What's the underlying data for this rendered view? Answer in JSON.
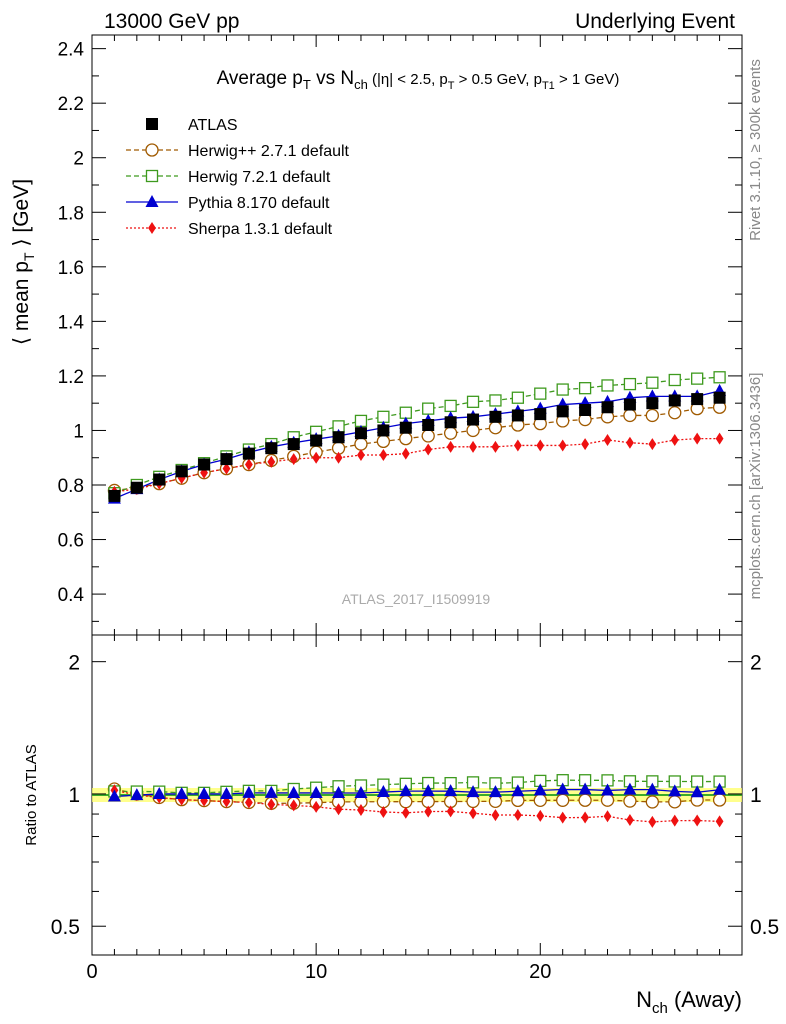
{
  "header": {
    "left": "13000 GeV pp",
    "right": "Underlying Event"
  },
  "side_labels": {
    "rivet": "Rivet 3.1.10, ≥ 300k events",
    "mcplots": "mcplots.cern.ch [arXiv:1306.3436]"
  },
  "watermark": "ATLAS_2017_I1509919",
  "chart_data": {
    "type": "line",
    "title": {
      "main": "Average p",
      "main_sub": "T",
      "vs": " vs N",
      "vs_sub": "ch",
      "cuts_a": " (|η| < 2.5, p",
      "cuts_a_sub": "T",
      "cuts_b": " > 0.5 GeV, p",
      "cuts_b_sub": "T1",
      "cuts_c": " > 1 GeV)"
    },
    "ylabel": {
      "a": "⟨ mean p",
      "sub": "T",
      "b": " ⟩ [GeV]"
    },
    "xlabel": {
      "a": "N",
      "sub": "ch",
      "b": " (Away)"
    },
    "ratio_ylabel": "Ratio to ATLAS",
    "xlim": [
      0,
      29
    ],
    "ylim": [
      0.25,
      2.45
    ],
    "ratio_ylim": [
      0.43,
      2.3
    ],
    "x_ticks": [
      "0",
      "10",
      "20"
    ],
    "y_ticks": [
      "0.4",
      "0.6",
      "0.8",
      "1",
      "1.2",
      "1.4",
      "1.6",
      "1.8",
      "2",
      "2.2",
      "2.4"
    ],
    "ratio_ticks": [
      "0.5",
      "1",
      "2"
    ],
    "x": [
      1,
      2,
      3,
      4,
      5,
      6,
      7,
      8,
      9,
      10,
      11,
      12,
      13,
      14,
      15,
      16,
      17,
      18,
      19,
      20,
      21,
      22,
      23,
      24,
      25,
      26,
      27,
      28
    ],
    "series": [
      {
        "name": "ATLAS",
        "color": "#000000",
        "marker": "square-filled",
        "values": [
          0.76,
          0.79,
          0.82,
          0.85,
          0.875,
          0.895,
          0.915,
          0.935,
          0.95,
          0.963,
          0.975,
          0.99,
          1.0,
          1.01,
          1.02,
          1.03,
          1.04,
          1.05,
          1.055,
          1.06,
          1.07,
          1.075,
          1.085,
          1.095,
          1.1,
          1.11,
          1.115,
          1.12
        ]
      },
      {
        "name": "Herwig++ 2.7.1 default",
        "color": "#a05a00",
        "marker": "circle-open",
        "values": [
          0.78,
          0.79,
          0.805,
          0.825,
          0.845,
          0.86,
          0.875,
          0.89,
          0.905,
          0.92,
          0.935,
          0.95,
          0.96,
          0.97,
          0.98,
          0.99,
          1.0,
          1.01,
          1.02,
          1.025,
          1.035,
          1.04,
          1.05,
          1.055,
          1.055,
          1.065,
          1.08,
          1.085
        ]
      },
      {
        "name": "Herwig 7.2.1 default",
        "color": "#3e9a1e",
        "marker": "square-open",
        "values": [
          0.77,
          0.8,
          0.83,
          0.855,
          0.88,
          0.905,
          0.93,
          0.95,
          0.975,
          0.995,
          1.015,
          1.035,
          1.05,
          1.065,
          1.08,
          1.09,
          1.105,
          1.11,
          1.12,
          1.135,
          1.15,
          1.155,
          1.165,
          1.17,
          1.175,
          1.185,
          1.19,
          1.195
        ]
      },
      {
        "name": "Pythia 8.170 default",
        "color": "#0000d0",
        "marker": "triangle-filled",
        "values": [
          0.75,
          0.785,
          0.82,
          0.85,
          0.875,
          0.895,
          0.92,
          0.94,
          0.955,
          0.968,
          0.98,
          0.995,
          1.01,
          1.025,
          1.035,
          1.045,
          1.05,
          1.06,
          1.07,
          1.08,
          1.095,
          1.1,
          1.105,
          1.12,
          1.125,
          1.125,
          1.125,
          1.145
        ]
      },
      {
        "name": "Sherpa 1.3.1 default",
        "color": "#ee1111",
        "marker": "diamond-filled",
        "values": [
          0.775,
          0.785,
          0.805,
          0.825,
          0.845,
          0.86,
          0.875,
          0.885,
          0.895,
          0.9,
          0.9,
          0.91,
          0.91,
          0.915,
          0.93,
          0.94,
          0.94,
          0.94,
          0.945,
          0.945,
          0.945,
          0.95,
          0.965,
          0.955,
          0.95,
          0.965,
          0.97,
          0.97
        ]
      }
    ]
  }
}
